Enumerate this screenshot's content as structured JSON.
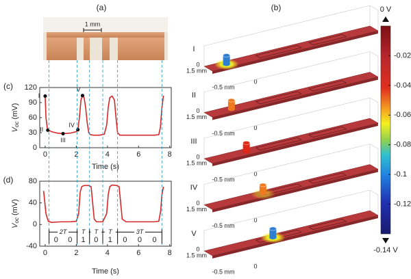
{
  "panel_a": {
    "label": "(a)",
    "scale_label": "1 mm"
  },
  "panel_b": {
    "label": "(b)",
    "rows": [
      {
        "label": "I",
        "cylinder_color": "#2f7fd0",
        "labels": [
          "0",
          "1.5 mm",
          "-0.5 mm",
          "0"
        ]
      },
      {
        "label": "II",
        "cylinder_color": "#f07a20",
        "labels": [
          "0",
          "1.5 mm",
          "-0.5 mm",
          "0"
        ]
      },
      {
        "label": "III",
        "cylinder_color": "#e02818",
        "labels": [
          "0",
          "1.5 mm",
          "-0.5 mm",
          "0"
        ]
      },
      {
        "label": "IV",
        "cylinder_color": "#f07a20",
        "labels": [
          "0",
          "1.5 mm",
          "-0.5 mm",
          "0"
        ]
      },
      {
        "label": "V",
        "cylinder_color": "#2f7fd0",
        "labels": [
          "0",
          "1.5 mm",
          "-0.5 mm",
          "0"
        ]
      }
    ]
  },
  "chart_data": [
    {
      "type": "line",
      "panel": "(c)",
      "x_label": "Time (s)",
      "y_label": {
        "symbol": "V",
        "subscript": "oc",
        "unit": "(mV)"
      },
      "xlim": [
        -0.35,
        8.1
      ],
      "xticks": [
        0,
        2,
        4,
        6,
        8
      ],
      "ylim": [
        0,
        120
      ],
      "yticks": [
        0,
        30,
        60,
        90,
        120
      ],
      "x": [
        0,
        0.05,
        0.15,
        0.4,
        0.8,
        1.15,
        1.6,
        2.0,
        2.1,
        2.2,
        2.3,
        2.4,
        2.5,
        2.6,
        2.7,
        2.8,
        2.9,
        3.1,
        3.5,
        3.8,
        3.95,
        4.05,
        4.15,
        4.3,
        4.45,
        4.55,
        4.65,
        4.8,
        5.2,
        6,
        7,
        7.3,
        7.4,
        7.5,
        7.6
      ],
      "series": [
        {
          "color": "#d62728",
          "values": [
            103,
            60,
            36,
            32,
            29,
            28,
            29,
            32,
            36,
            60,
            95,
            104,
            100,
            80,
            50,
            30,
            26,
            25,
            25,
            27,
            45,
            80,
            100,
            103,
            95,
            60,
            30,
            25,
            25,
            25,
            25,
            26,
            40,
            80,
            104
          ]
        }
      ],
      "point_labels": [
        "I",
        "II",
        "III",
        "IV",
        "V"
      ],
      "point_x": [
        0,
        0.17,
        1.15,
        2.1,
        2.4
      ],
      "point_y": [
        103,
        35,
        28,
        36,
        104
      ]
    },
    {
      "type": "line",
      "panel": "(d)",
      "x_label": "Time (s)",
      "y_label": {
        "symbol": "V",
        "subscript": "oc",
        "unit": "(mV)"
      },
      "xlim": [
        -0.35,
        8.1
      ],
      "xticks": [
        0,
        2,
        4,
        6,
        8
      ],
      "ylim": [
        -40,
        80
      ],
      "yticks": [
        -40,
        0,
        40,
        80
      ],
      "x": [
        -0.1,
        0.05,
        0.2,
        0.4,
        1,
        1.6,
        2.0,
        2.15,
        2.25,
        2.35,
        2.5,
        2.8,
        2.95,
        3.05,
        3.15,
        3.3,
        3.7,
        3.95,
        4.05,
        4.15,
        4.3,
        4.6,
        4.75,
        4.85,
        4.95,
        5.2,
        6,
        7,
        7.3,
        7.42,
        7.5,
        7.6
      ],
      "series": [
        {
          "color": "#d62728",
          "values": [
            62,
            20,
            6,
            4,
            5,
            5,
            6,
            20,
            60,
            70,
            72,
            72,
            70,
            40,
            10,
            5,
            5,
            20,
            55,
            70,
            73,
            72,
            70,
            40,
            10,
            5,
            5,
            5,
            6,
            25,
            55,
            70
          ]
        }
      ],
      "period_edges": [
        0.25,
        2.05,
        2.85,
        3.7,
        4.65,
        7.5
      ],
      "period_labels": [
        "2T",
        "T",
        "T",
        "T",
        "3T"
      ],
      "bits": [
        [
          "0",
          "0"
        ],
        [
          "1"
        ],
        [
          "0"
        ],
        [
          "1"
        ],
        [
          "0",
          "0",
          "0"
        ]
      ]
    },
    {
      "type": "colorbar",
      "ylim": [
        -0.14,
        0
      ],
      "yticks": [
        {
          "value": 0,
          "label": "0 V"
        },
        -0.02,
        -0.04,
        -0.06,
        -0.08,
        -0.1,
        -0.12,
        {
          "value": -0.14,
          "label": "-0.14 V"
        }
      ]
    }
  ]
}
